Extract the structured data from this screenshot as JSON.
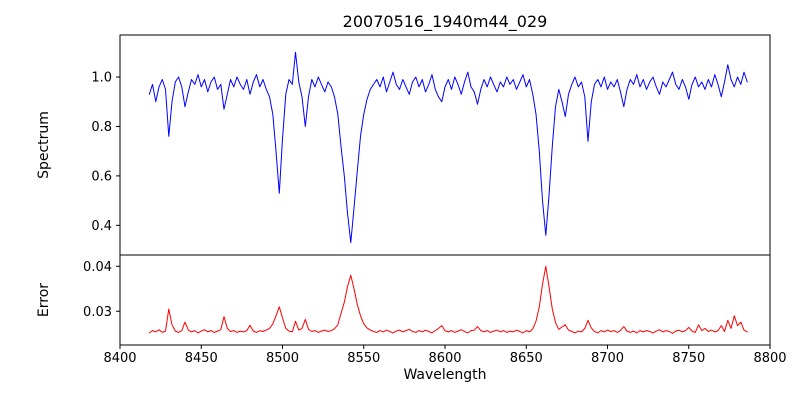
{
  "title": "20070516_1940m44_029",
  "chart_data": {
    "type": "line",
    "title": "20070516_1940m44_029",
    "xlabel": "Wavelength",
    "x_start": 8418,
    "x_step": 2,
    "xlim": [
      8400,
      8800
    ],
    "xticks": [
      8400,
      8450,
      8500,
      8550,
      8600,
      8650,
      8700,
      8750,
      8800
    ],
    "xtick_labels": [
      "8400",
      "8450",
      "8500",
      "8550",
      "8600",
      "8650",
      "8700",
      "8750",
      "8800"
    ],
    "grid": false,
    "legend": "none",
    "panels": [
      {
        "name": "spectrum",
        "ylabel": "Spectrum",
        "color": "#0000ff",
        "ylim": [
          0.28,
          1.17
        ],
        "yticks": [
          0.4,
          0.6,
          0.8,
          1.0
        ],
        "ytick_labels": [
          "0.4",
          "0.6",
          "0.8",
          "1.0"
        ],
        "values": [
          0.93,
          0.97,
          0.9,
          0.96,
          0.99,
          0.95,
          0.76,
          0.9,
          0.98,
          1.0,
          0.96,
          0.88,
          0.94,
          0.99,
          0.97,
          1.01,
          0.96,
          0.99,
          0.94,
          0.98,
          1.0,
          0.95,
          0.97,
          0.87,
          0.93,
          0.99,
          0.96,
          1.0,
          0.97,
          0.95,
          0.99,
          0.93,
          0.98,
          1.01,
          0.96,
          0.99,
          0.95,
          0.92,
          0.85,
          0.7,
          0.53,
          0.75,
          0.93,
          0.99,
          0.97,
          1.1,
          0.98,
          0.92,
          0.8,
          0.92,
          0.99,
          0.96,
          1.0,
          0.97,
          0.94,
          0.98,
          0.96,
          0.92,
          0.85,
          0.72,
          0.6,
          0.45,
          0.33,
          0.47,
          0.62,
          0.76,
          0.85,
          0.91,
          0.95,
          0.97,
          0.99,
          0.96,
          1.0,
          0.94,
          0.98,
          1.02,
          0.97,
          0.95,
          0.99,
          0.96,
          0.93,
          0.98,
          1.0,
          0.96,
          0.99,
          0.94,
          0.97,
          1.01,
          0.95,
          0.92,
          0.9,
          0.96,
          0.99,
          0.95,
          1.0,
          0.97,
          0.93,
          0.98,
          1.02,
          0.96,
          0.94,
          0.89,
          0.95,
          0.99,
          0.96,
          1.0,
          0.97,
          0.94,
          0.98,
          0.96,
          1.0,
          0.97,
          0.99,
          0.95,
          0.98,
          1.01,
          0.96,
          0.99,
          0.93,
          0.85,
          0.7,
          0.5,
          0.36,
          0.52,
          0.72,
          0.88,
          0.95,
          0.9,
          0.84,
          0.93,
          0.97,
          1.0,
          0.96,
          0.98,
          0.92,
          0.74,
          0.9,
          0.97,
          0.99,
          0.96,
          1.0,
          0.95,
          0.98,
          0.96,
          0.99,
          0.94,
          0.88,
          0.95,
          0.99,
          0.97,
          1.01,
          0.96,
          0.99,
          0.95,
          0.98,
          1.0,
          0.96,
          0.93,
          0.98,
          0.96,
          0.99,
          1.02,
          0.97,
          0.95,
          0.99,
          0.96,
          0.91,
          0.97,
          1.0,
          0.96,
          0.98,
          0.95,
          0.99,
          0.96,
          1.01,
          0.97,
          0.92,
          0.98,
          1.05,
          0.99,
          0.96,
          1.0,
          0.97,
          1.02,
          0.98
        ]
      },
      {
        "name": "error",
        "ylabel": "Error",
        "color": "#ff0000",
        "ylim": [
          0.0225,
          0.0425
        ],
        "yticks": [
          0.03,
          0.04
        ],
        "ytick_labels": [
          "0.03",
          "0.04"
        ],
        "values": [
          0.0252,
          0.0257,
          0.0254,
          0.0259,
          0.0253,
          0.0256,
          0.0305,
          0.027,
          0.0256,
          0.0253,
          0.0257,
          0.0276,
          0.0258,
          0.0254,
          0.0257,
          0.0252,
          0.0256,
          0.0259,
          0.0254,
          0.0257,
          0.0253,
          0.0256,
          0.0259,
          0.0288,
          0.0262,
          0.0255,
          0.0257,
          0.0253,
          0.0256,
          0.0254,
          0.0257,
          0.0269,
          0.0256,
          0.0253,
          0.0257,
          0.0255,
          0.0258,
          0.0262,
          0.0272,
          0.029,
          0.031,
          0.0285,
          0.0262,
          0.0256,
          0.0254,
          0.0278,
          0.0258,
          0.0262,
          0.0282,
          0.026,
          0.0255,
          0.0257,
          0.0253,
          0.0256,
          0.0258,
          0.0255,
          0.0257,
          0.0261,
          0.027,
          0.0295,
          0.032,
          0.0355,
          0.038,
          0.035,
          0.0315,
          0.029,
          0.0272,
          0.0263,
          0.0258,
          0.0255,
          0.0253,
          0.0257,
          0.0254,
          0.0258,
          0.0255,
          0.0252,
          0.0256,
          0.0258,
          0.0254,
          0.0257,
          0.026,
          0.0255,
          0.0253,
          0.0257,
          0.0254,
          0.0258,
          0.0255,
          0.0252,
          0.0257,
          0.0262,
          0.0268,
          0.0257,
          0.0254,
          0.0257,
          0.0253,
          0.0256,
          0.0259,
          0.0255,
          0.0252,
          0.0257,
          0.0258,
          0.0266,
          0.0257,
          0.0254,
          0.0257,
          0.0253,
          0.0256,
          0.0258,
          0.0254,
          0.0257,
          0.0253,
          0.0256,
          0.0254,
          0.0258,
          0.0255,
          0.0252,
          0.0257,
          0.0254,
          0.0261,
          0.0278,
          0.031,
          0.036,
          0.04,
          0.0355,
          0.0305,
          0.0275,
          0.026,
          0.0265,
          0.027,
          0.0258,
          0.0255,
          0.0252,
          0.0256,
          0.0254,
          0.0262,
          0.028,
          0.0263,
          0.0255,
          0.0252,
          0.0257,
          0.0254,
          0.0258,
          0.0255,
          0.0257,
          0.0253,
          0.0257,
          0.0266,
          0.0256,
          0.0253,
          0.0256,
          0.0252,
          0.0257,
          0.0254,
          0.0257,
          0.0255,
          0.0252,
          0.0256,
          0.0259,
          0.0254,
          0.0257,
          0.0255,
          0.0251,
          0.0256,
          0.0258,
          0.0254,
          0.0257,
          0.0264,
          0.0256,
          0.0253,
          0.027,
          0.0257,
          0.0262,
          0.0255,
          0.0258,
          0.0254,
          0.0257,
          0.0268,
          0.0255,
          0.028,
          0.0262,
          0.029,
          0.0268,
          0.0276,
          0.0258,
          0.0254
        ]
      }
    ]
  }
}
